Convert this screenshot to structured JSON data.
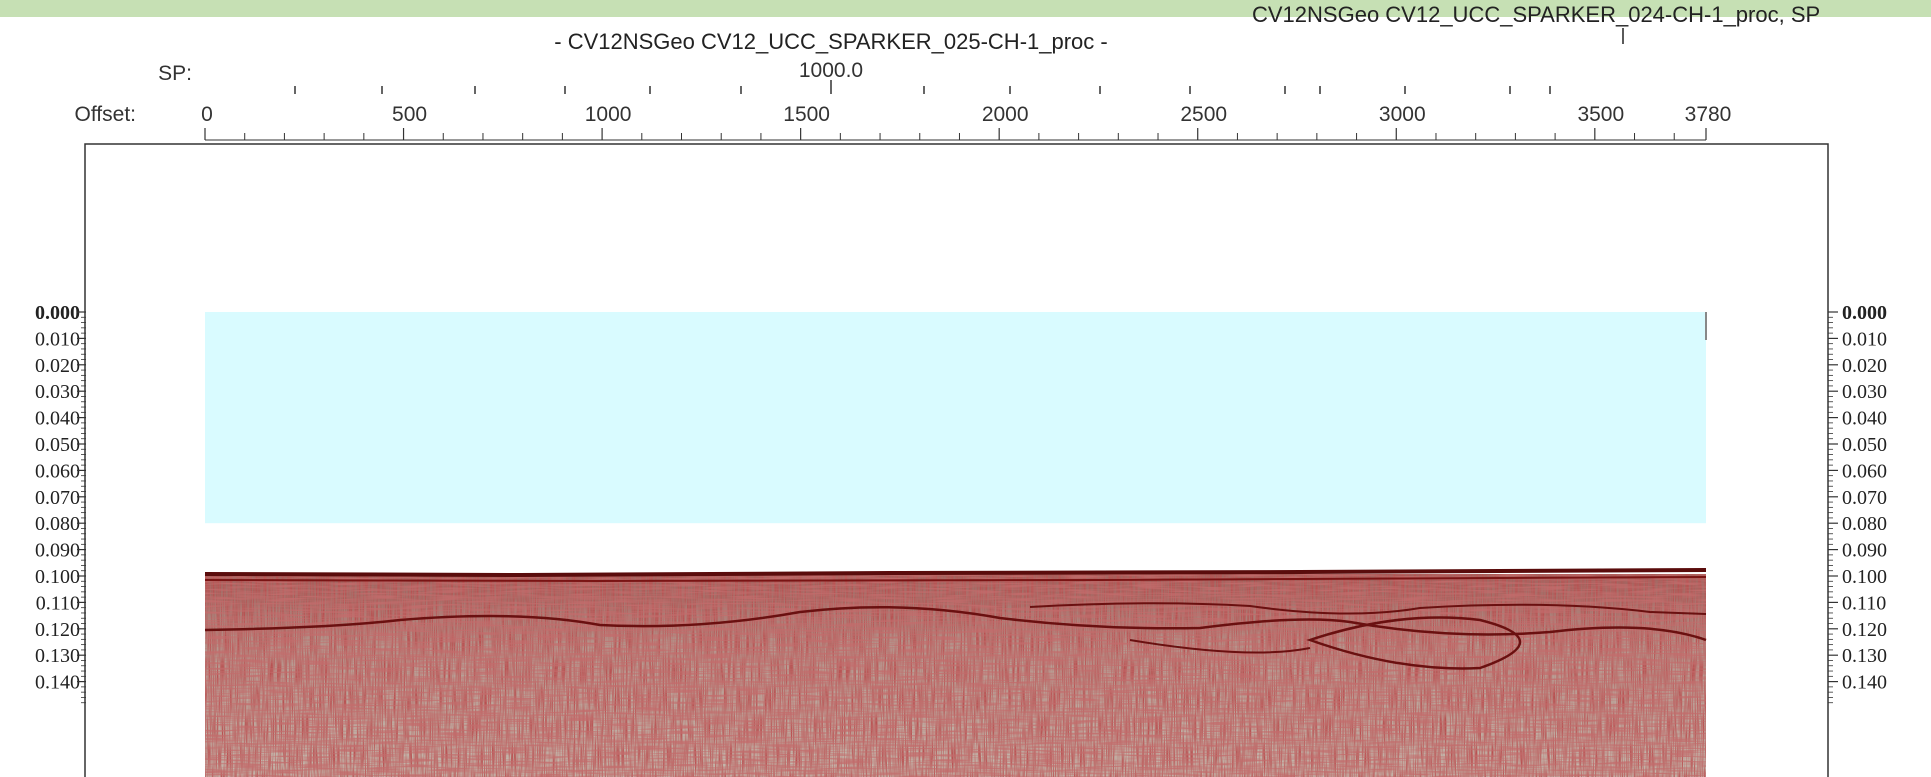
{
  "header": {
    "title": "- CV12NSGeo CV12_UCC_SPARKER_025-CH-1_proc -",
    "clipped_title": "CV12NSGeo CV12_UCC_SPARKER_024-CH-1_proc, SP",
    "sp_label": "SP:",
    "sp_value": "1000.0",
    "offset_label": "Offset:"
  },
  "colors": {
    "water": "#d9fbff",
    "reflector": "#7a1414",
    "sediment": "#c9c4b8",
    "topbar": "#c6e0b4"
  },
  "chart_data": {
    "type": "heatmap",
    "title": "- CV12NSGeo CV12_UCC_SPARKER_025-CH-1_proc -",
    "x_axis": {
      "label": "Offset:",
      "ticks": [
        0,
        500,
        1000,
        1500,
        2000,
        2500,
        3000,
        3500,
        3780
      ],
      "range": [
        0,
        3780
      ]
    },
    "sp_axis": {
      "label": "SP:",
      "ticks": [
        1000.0
      ]
    },
    "y_axis": {
      "ticks": [
        "0.000",
        "0.010",
        "0.020",
        "0.030",
        "0.040",
        "0.050",
        "0.060",
        "0.070",
        "0.080",
        "0.090",
        "0.100",
        "0.110",
        "0.120",
        "0.130",
        "0.140"
      ],
      "range": [
        0.0,
        0.14
      ],
      "inverted": true
    },
    "seafloor_twt": 0.08,
    "sub_reflectors_twt": [
      0.09,
      0.1,
      0.11
    ]
  }
}
